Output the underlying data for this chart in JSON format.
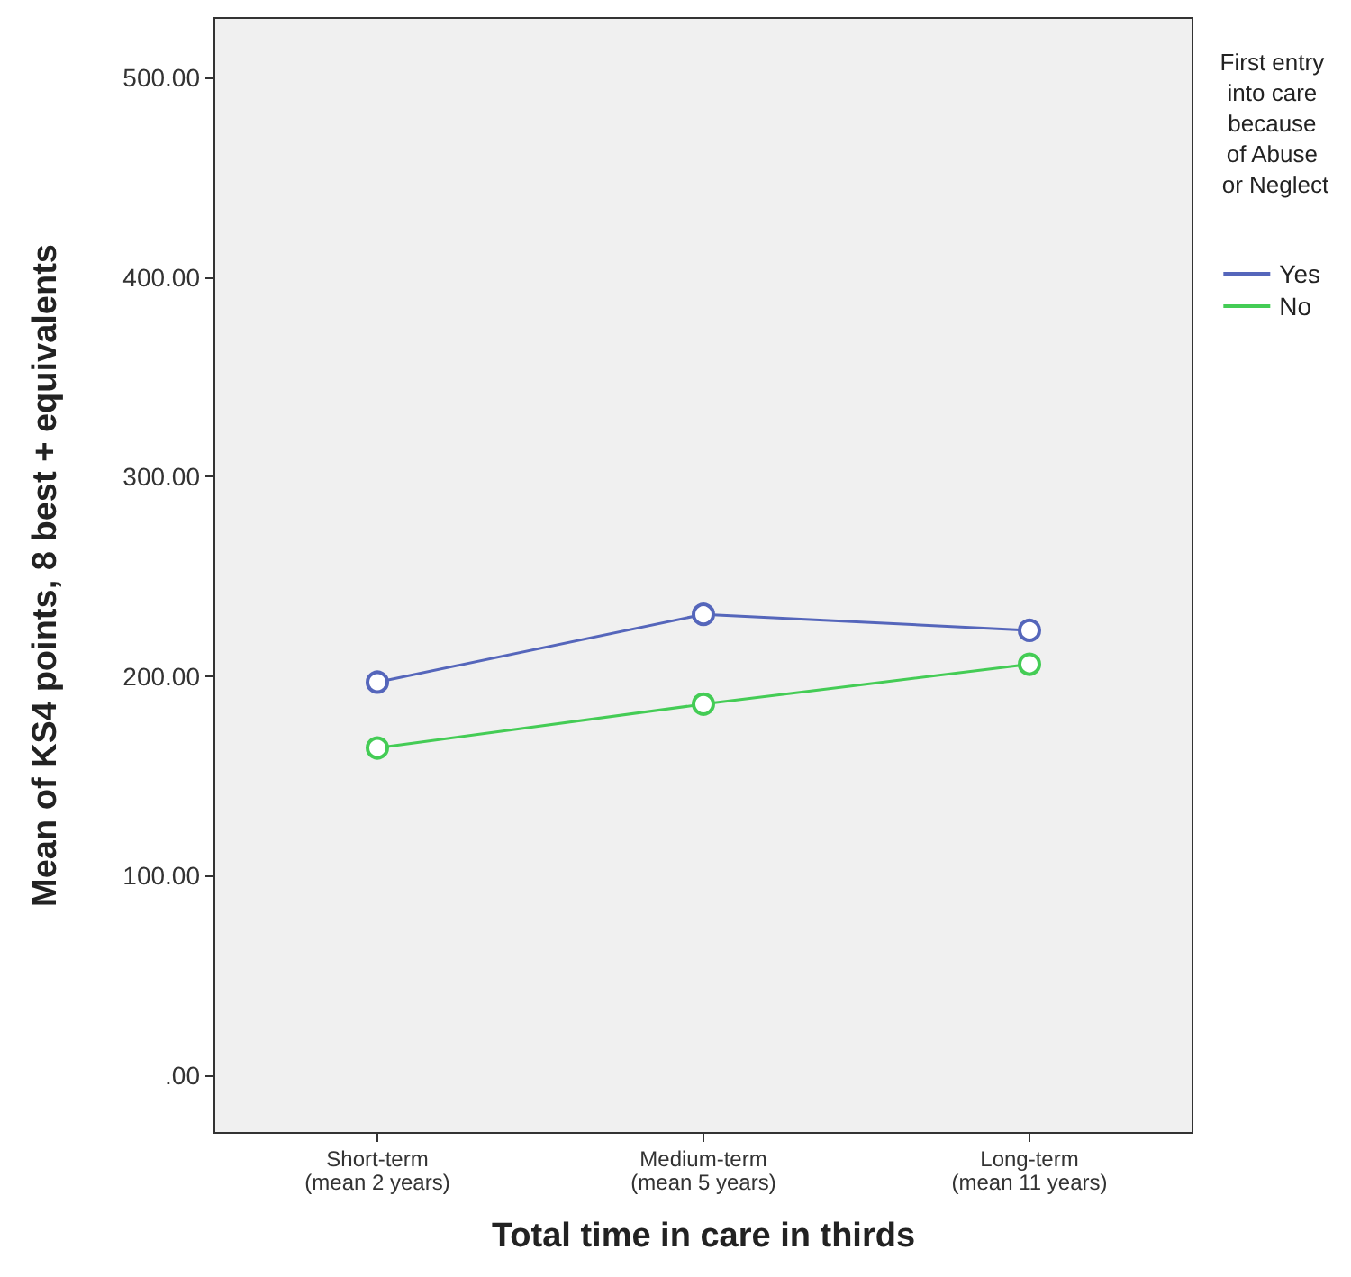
{
  "chart_data": {
    "type": "line",
    "xlabel": "Total time in care in thirds",
    "ylabel": "Mean of KS4 points, 8 best + equivalents",
    "legend_title": "First entry into care because of Abuse or Neglect",
    "categories": [
      "Short-term\n(mean 2 years)",
      "Medium-term\n(mean 5 years)",
      "Long-term\n(mean 11 years)"
    ],
    "series": [
      {
        "name": "Yes",
        "color": "#5566bb",
        "values": [
          197,
          231,
          223
        ]
      },
      {
        "name": "No",
        "color": "#44cc55",
        "values": [
          164,
          186,
          206
        ]
      }
    ],
    "ylim": [
      -29,
      530
    ],
    "yticks": [
      {
        "value": 0,
        "label": ".00"
      },
      {
        "value": 100,
        "label": "100.00"
      },
      {
        "value": 200,
        "label": "200.00"
      },
      {
        "value": 300,
        "label": "300.00"
      },
      {
        "value": 400,
        "label": "400.00"
      },
      {
        "value": 500,
        "label": "500.00"
      }
    ],
    "grid": false,
    "legend": "right",
    "marker": "circle",
    "line_style": "solid"
  }
}
